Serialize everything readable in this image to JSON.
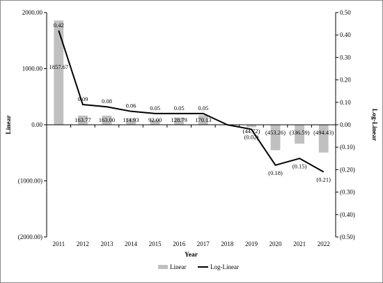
{
  "chart_data": {
    "type": "bar",
    "title": "",
    "xlabel": "Year",
    "ylabel": "Linear",
    "y2label": "Log-Linear",
    "categories": [
      "2011",
      "2012",
      "2013",
      "2014",
      "2015",
      "2016",
      "2017",
      "2018",
      "2019",
      "2020",
      "2021",
      "2022"
    ],
    "ylim": [
      -2000,
      2000
    ],
    "y2lim": [
      -0.5,
      0.5
    ],
    "yticks": [
      2000,
      1000,
      0,
      -1000,
      -2000
    ],
    "ytick_labels": [
      "2000.00",
      "1000.00",
      "0.00",
      "(1000.00)",
      "(2000.00)"
    ],
    "y2ticks": [
      0.5,
      0.4,
      0.3,
      0.2,
      0.1,
      0,
      -0.1,
      -0.2,
      -0.3,
      -0.4,
      -0.5
    ],
    "y2tick_labels": [
      "0.50",
      "0.40",
      "0.30",
      "0.20",
      "0.10",
      "0.00",
      "(0.10)",
      "(0.20)",
      "(0.30)",
      "(0.40)",
      "(0.50)"
    ],
    "grid": false,
    "legend_position": "bottom",
    "series": [
      {
        "name": "Linear",
        "type": "bar",
        "axis": "left",
        "color": "#c0c0c0",
        "values": [
          1857.67,
          163.77,
          163.0,
          114.93,
          92.0,
          128.79,
          170.13,
          0,
          -44.72,
          -453.26,
          -336.59,
          -494.43
        ],
        "labels": [
          "1857.67",
          "163.77",
          "163.00",
          "114.93",
          "92.00",
          "128.79",
          "170.13",
          "",
          "(44.72)",
          "(453.26)",
          "(336.59)",
          "(494.43)"
        ]
      },
      {
        "name": "Log-Linear",
        "type": "line",
        "axis": "right",
        "color": "#000000",
        "values": [
          0.42,
          0.09,
          0.08,
          0.06,
          0.05,
          0.05,
          0.05,
          0.0,
          -0.02,
          -0.18,
          -0.15,
          -0.21
        ],
        "labels": [
          "0.42",
          "0.09",
          "0.08",
          "0.06",
          "0.05",
          "0.05",
          "0.05",
          "",
          "(0.02)",
          "(0.18)",
          "(0.15)",
          "(0.21)"
        ]
      }
    ]
  }
}
